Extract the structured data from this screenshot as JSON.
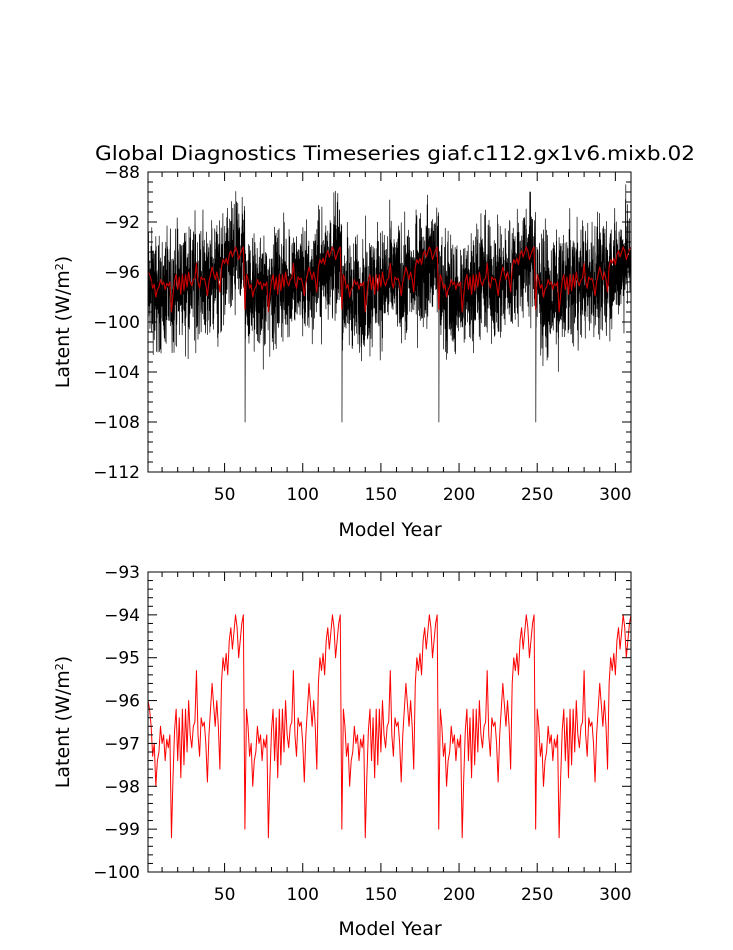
{
  "title": "Global Diagnostics Timeseries giaf.c112.gx1v6.mixb.02",
  "chart_data": [
    {
      "type": "line",
      "xlabel": "Model Year",
      "ylabel": "Latent (W/m²)",
      "ylabel_main": "Latent (W/m",
      "ylabel_sup": "2",
      "ylabel_end": ")",
      "xlim": [
        1,
        310
      ],
      "ylim": [
        -112,
        -88
      ],
      "xticks": [
        50,
        100,
        150,
        200,
        250,
        300
      ],
      "xtick_labels": [
        "50",
        "100",
        "150",
        "200",
        "250",
        "300"
      ],
      "yticks": [
        -112,
        -108,
        -104,
        -100,
        -96,
        -92,
        -88
      ],
      "ytick_labels": [
        "−112",
        "−108",
        "−104",
        "−100",
        "−96",
        "−92",
        "−88"
      ],
      "cycle_years": 62,
      "cycle_start": 1,
      "series": [
        {
          "color": "#000000",
          "style": "monthly",
          "years": [
            1,
            310
          ],
          "samples_per_year": 12,
          "cycle_mean": [
            [
              0,
              -97.3
            ],
            [
              8,
              -97.9
            ],
            [
              15,
              -97.6
            ],
            [
              22,
              -97.0
            ],
            [
              30,
              -96.6
            ],
            [
              40,
              -96.8
            ],
            [
              48,
              -96.0
            ],
            [
              55,
              -95.4
            ],
            [
              60,
              -94.6
            ],
            [
              62,
              -94.3
            ]
          ],
          "spread": 5.0,
          "spikes": [
            {
              "year": 63,
              "value": -108
            },
            {
              "year": 125,
              "value": -108
            },
            {
              "year": 187,
              "value": -108
            },
            {
              "year": 249,
              "value": -108
            }
          ]
        },
        {
          "color": "#cc0000",
          "style": "annual",
          "ref": "annual_series"
        }
      ]
    },
    {
      "type": "line",
      "xlabel": "Model Year",
      "ylabel": "Latent (W/m²)",
      "ylabel_main": "Latent (W/m",
      "ylabel_sup": "2",
      "ylabel_end": ")",
      "xlim": [
        1,
        310
      ],
      "ylim": [
        -100,
        -93
      ],
      "xticks": [
        50,
        100,
        150,
        200,
        250,
        300
      ],
      "xtick_labels": [
        "50",
        "100",
        "150",
        "200",
        "250",
        "300"
      ],
      "yticks": [
        -100,
        -99,
        -98,
        -97,
        -96,
        -95,
        -94,
        -93
      ],
      "ytick_labels": [
        "−100",
        "−99",
        "−98",
        "−97",
        "−96",
        "−95",
        "−94",
        "−93"
      ],
      "series": [
        {
          "color": "#ff0000",
          "style": "annual",
          "ref": "annual_series"
        }
      ]
    }
  ],
  "annual_series": {
    "cycle_years": 62,
    "start_year": 1,
    "end_year": 310,
    "cycle_values": [
      -96.0,
      -96.2,
      -96.6,
      -97.3,
      -97.0,
      -98.0,
      -97.4,
      -97.2,
      -96.6,
      -97.0,
      -96.8,
      -97.4,
      -96.9,
      -97.1,
      -96.8,
      -99.2,
      -97.8,
      -96.7,
      -96.2,
      -97.4,
      -96.4,
      -97.8,
      -96.2,
      -97.5,
      -96.2,
      -97.2,
      -96.0,
      -96.8,
      -97.1,
      -96.6,
      -96.5,
      -95.3,
      -96.8,
      -97.3,
      -96.4,
      -96.6,
      -96.5,
      -97.0,
      -97.9,
      -96.8,
      -96.2,
      -95.6,
      -96.1,
      -96.6,
      -96.0,
      -96.6,
      -97.6,
      -95.6,
      -95.0,
      -95.3,
      -94.9,
      -95.4,
      -94.6,
      -94.3,
      -94.8,
      -94.4,
      -94.0,
      -94.3,
      -95.0,
      -94.6,
      -94.2,
      -94.0
    ],
    "drop_value": -99.0
  }
}
